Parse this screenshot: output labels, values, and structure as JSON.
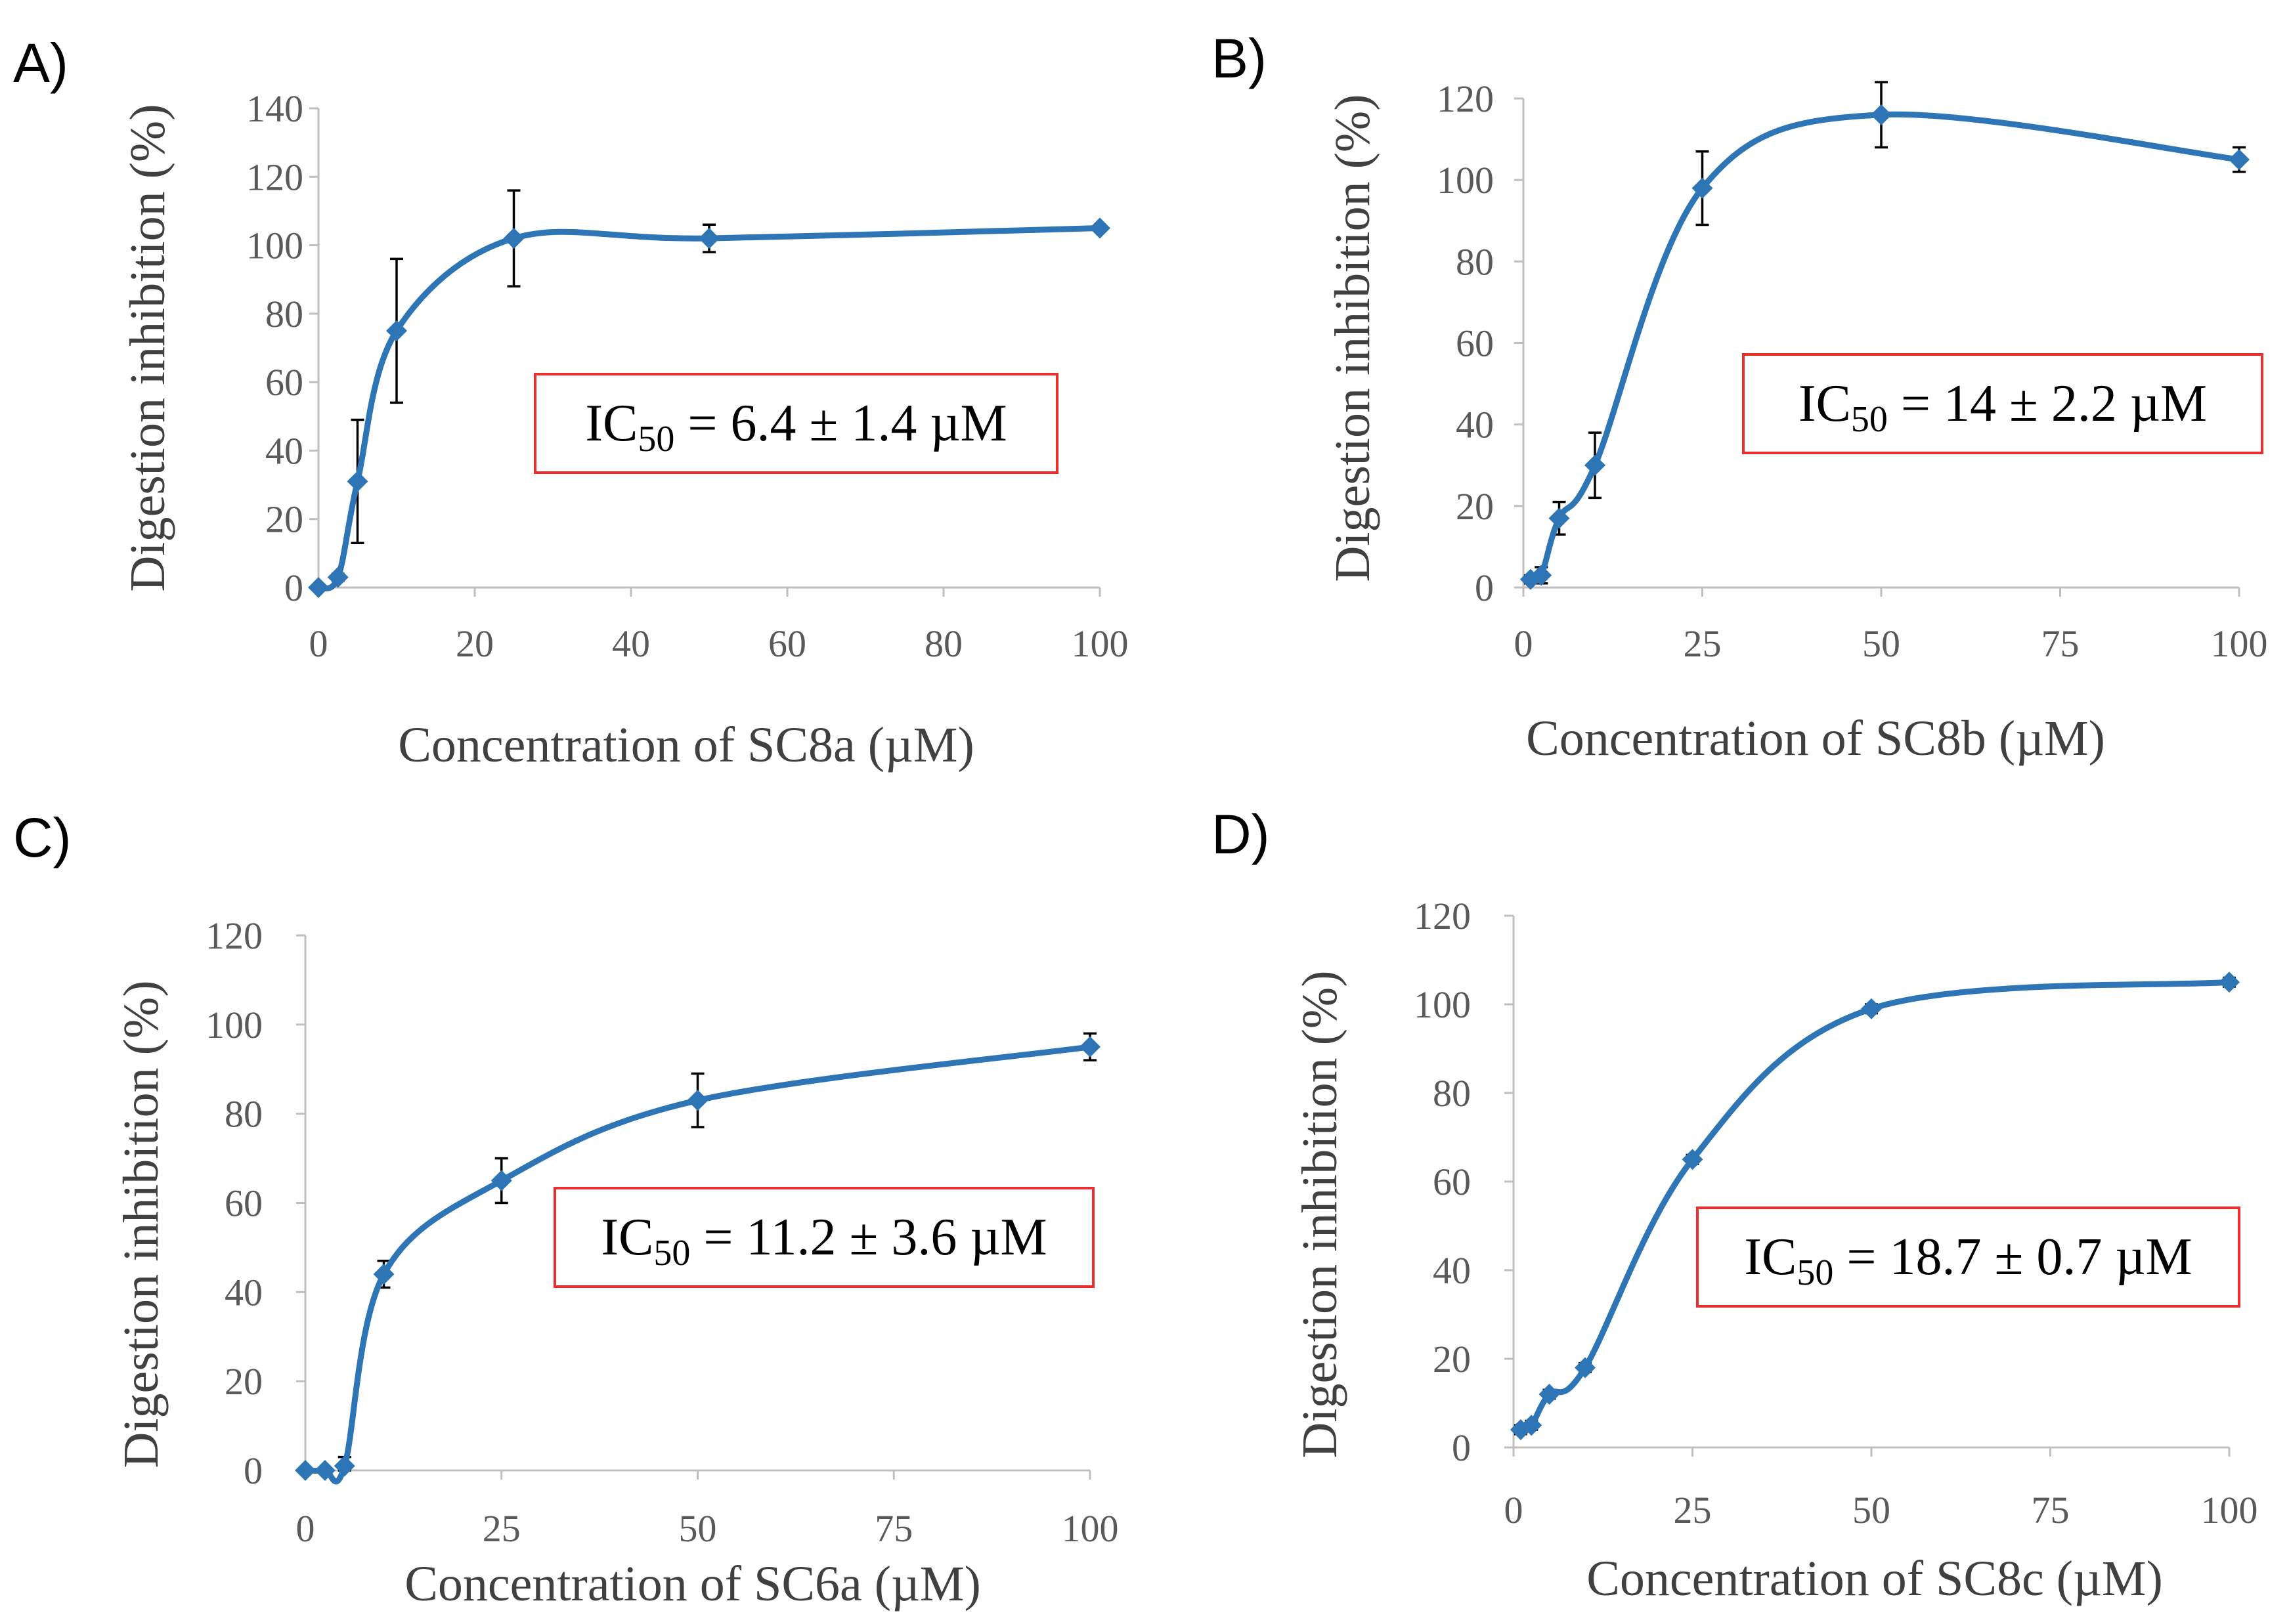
{
  "colors": {
    "series": "#2e75b6",
    "marker": "#2e75b6",
    "box_border": "#e8302e",
    "error_bar": "#000000"
  },
  "chart_data": [
    {
      "type": "scatter",
      "panel": "A)",
      "xlabel": "Concentration of SC8a (µM)",
      "ylabel": "Digestion inhibition (%)",
      "xlim": [
        0,
        100
      ],
      "xticks": [
        0,
        20,
        40,
        60,
        80,
        100
      ],
      "ylim": [
        0,
        140
      ],
      "yticks": [
        0,
        20,
        40,
        60,
        80,
        100,
        120,
        140
      ],
      "annotation": {
        "prefix": "IC",
        "sub": "50",
        "suffix": " = 6.4 ± 1.4 µM"
      },
      "x": [
        0,
        2.5,
        5,
        10,
        25,
        50,
        100
      ],
      "y": [
        0,
        3,
        31,
        75,
        102,
        102,
        105
      ],
      "err": [
        0,
        1,
        18,
        21,
        14,
        4,
        0
      ]
    },
    {
      "type": "scatter",
      "panel": "B)",
      "xlabel": "Concentration of SC8b (µM)",
      "ylabel": "Digestion inhibition (%)",
      "xlim": [
        0,
        100
      ],
      "xticks": [
        0,
        25,
        50,
        75,
        100
      ],
      "ylim": [
        0,
        120
      ],
      "yticks": [
        0,
        20,
        40,
        60,
        80,
        100,
        120
      ],
      "annotation": {
        "prefix": "IC",
        "sub": "50",
        "suffix": " = 14 ± 2.2 µM"
      },
      "x": [
        1,
        2.5,
        5,
        10,
        25,
        50,
        100
      ],
      "y": [
        2,
        3,
        17,
        30,
        98,
        116,
        105
      ],
      "err": [
        1,
        2,
        4,
        8,
        9,
        8,
        3
      ]
    },
    {
      "type": "scatter",
      "panel": "C)",
      "xlabel": "Concentration of SC6a (µM)",
      "ylabel": "Digestion inhibition (%)",
      "xlim": [
        0,
        100
      ],
      "xticks": [
        0,
        25,
        50,
        75,
        100
      ],
      "ylim": [
        0,
        120
      ],
      "yticks": [
        0,
        20,
        40,
        60,
        80,
        100,
        120
      ],
      "annotation": {
        "prefix": "IC",
        "sub": "50",
        "suffix": " = 11.2 ± 3.6 µM"
      },
      "x": [
        0,
        2.5,
        5,
        10,
        25,
        50,
        100
      ],
      "y": [
        0,
        0,
        1,
        44,
        65,
        83,
        95
      ],
      "err": [
        0,
        0,
        2,
        3,
        5,
        6,
        3
      ]
    },
    {
      "type": "scatter",
      "panel": "D)",
      "xlabel": "Concentration of SC8c (µM)",
      "ylabel": "Digestion inhibition (%)",
      "xlim": [
        0,
        100
      ],
      "xticks": [
        0,
        25,
        50,
        75,
        100
      ],
      "ylim": [
        0,
        120
      ],
      "yticks": [
        0,
        20,
        40,
        60,
        80,
        100,
        120
      ],
      "annotation": {
        "prefix": "IC",
        "sub": "50",
        "suffix": " = 18.7 ± 0.7 µM"
      },
      "x": [
        1,
        2.5,
        5,
        10,
        25,
        50,
        100
      ],
      "y": [
        4,
        5,
        12,
        18,
        65,
        99,
        105
      ],
      "err": [
        1,
        1,
        1,
        1,
        1,
        1,
        1
      ]
    }
  ]
}
